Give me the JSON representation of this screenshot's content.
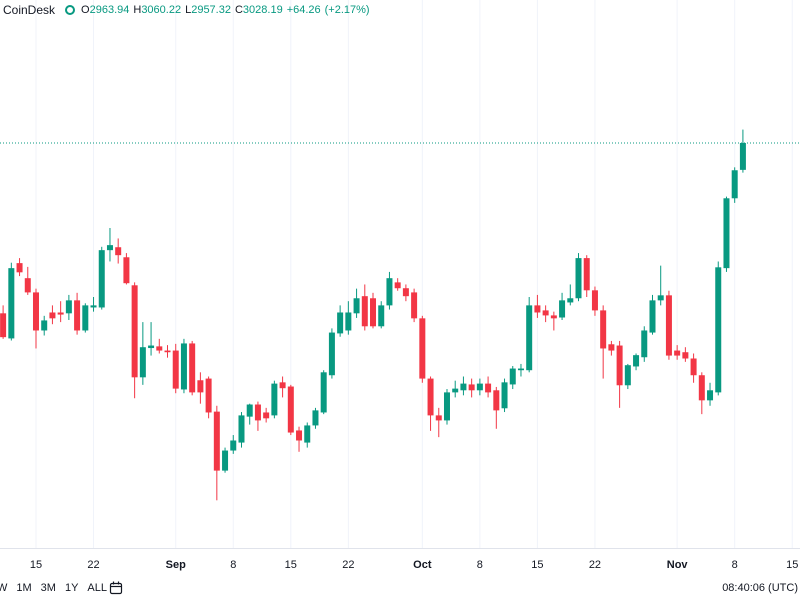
{
  "chart_data": {
    "type": "candlestick",
    "symbol": "CoinDesk",
    "ohlc_labels": [
      "O",
      "H",
      "L",
      "C"
    ],
    "change": {
      "value": 64.26,
      "label": "+64.26"
    },
    "change_pct": {
      "value": 2.17,
      "label": "(+2.17%)"
    },
    "up_color": "#089981",
    "down_color": "#f23645",
    "grid": true,
    "last_price_line": true,
    "categories": [
      null,
      null,
      null,
      null,
      "15",
      null,
      null,
      null,
      null,
      null,
      null,
      "22",
      null,
      null,
      null,
      null,
      null,
      null,
      null,
      null,
      null,
      "Sep",
      null,
      null,
      null,
      null,
      null,
      null,
      "8",
      null,
      null,
      null,
      null,
      null,
      null,
      "15",
      null,
      null,
      null,
      null,
      null,
      null,
      "22",
      null,
      null,
      null,
      null,
      null,
      null,
      null,
      null,
      "Oct",
      null,
      null,
      null,
      null,
      null,
      null,
      "8",
      null,
      null,
      null,
      null,
      null,
      null,
      "15",
      null,
      null,
      null,
      null,
      null,
      null,
      "22",
      null,
      null,
      null,
      null,
      null,
      null,
      null,
      null,
      null,
      "Nov",
      null,
      null,
      null,
      null,
      null,
      null,
      "8",
      null,
      null,
      null,
      null,
      null,
      null,
      "15"
    ],
    "open": [
      2621,
      2561,
      2741,
      2705,
      2671,
      2580,
      2623,
      2623,
      2621,
      2652,
      2580,
      2635,
      2635,
      2772,
      2779,
      2755,
      2688,
      2468,
      2538,
      2542,
      2532,
      2532,
      2439,
      2549,
      2461,
      2465,
      2386,
      2245,
      2293,
      2312,
      2374,
      2403,
      2384,
      2377,
      2456,
      2446,
      2341,
      2312,
      2353,
      2384,
      2473,
      2573,
      2580,
      2621,
      2662,
      2657,
      2590,
      2640,
      2695,
      2681,
      2671,
      2609,
      2465,
      2377,
      2365,
      2432,
      2437,
      2451,
      2437,
      2453,
      2437,
      2394,
      2451,
      2485,
      2485,
      2640,
      2628,
      2616,
      2611,
      2647,
      2657,
      2753,
      2676,
      2628,
      2547,
      2544,
      2449,
      2494,
      2516,
      2575,
      2652,
      2664,
      2532,
      2528,
      2513,
      2473,
      2413,
      2432,
      2729,
      2896,
      2963.94,
      null,
      null,
      null,
      null,
      null,
      null
    ],
    "high": [
      2640,
      2742,
      2753,
      2732,
      2680,
      2615,
      2640,
      2650,
      2665,
      2670,
      2645,
      2660,
      2780,
      2825,
      2800,
      2765,
      2695,
      2600,
      2600,
      2560,
      2545,
      2548,
      2560,
      2555,
      2480,
      2470,
      2400,
      2300,
      2330,
      2385,
      2405,
      2410,
      2395,
      2460,
      2470,
      2450,
      2350,
      2360,
      2395,
      2485,
      2585,
      2640,
      2650,
      2680,
      2690,
      2670,
      2650,
      2720,
      2705,
      2690,
      2680,
      2615,
      2470,
      2395,
      2440,
      2460,
      2470,
      2465,
      2465,
      2470,
      2445,
      2465,
      2495,
      2500,
      2660,
      2665,
      2640,
      2625,
      2670,
      2690,
      2765,
      2760,
      2685,
      2640,
      2555,
      2555,
      2500,
      2525,
      2590,
      2665,
      2735,
      2675,
      2545,
      2540,
      2525,
      2480,
      2455,
      2745,
      2900,
      2970,
      3060.22,
      null,
      null,
      null,
      null,
      null,
      null
    ],
    "low": [
      2560,
      2556,
      2710,
      2665,
      2537,
      2568,
      2595,
      2600,
      2605,
      2570,
      2575,
      2625,
      2630,
      2745,
      2740,
      2690,
      2418,
      2450,
      2520,
      2525,
      2515,
      2430,
      2430,
      2425,
      2405,
      2370,
      2174,
      2240,
      2285,
      2300,
      2355,
      2340,
      2360,
      2370,
      2420,
      2330,
      2290,
      2300,
      2345,
      2380,
      2465,
      2565,
      2570,
      2610,
      2580,
      2585,
      2585,
      2630,
      2675,
      2650,
      2600,
      2455,
      2340,
      2325,
      2355,
      2420,
      2425,
      2420,
      2425,
      2420,
      2345,
      2385,
      2440,
      2470,
      2480,
      2610,
      2600,
      2580,
      2605,
      2640,
      2650,
      2660,
      2615,
      2465,
      2520,
      2395,
      2440,
      2485,
      2505,
      2570,
      2640,
      2510,
      2510,
      2505,
      2455,
      2380,
      2400,
      2425,
      2720,
      2885,
      2957.32,
      null,
      null,
      null,
      null,
      null,
      null
    ],
    "close": [
      2564,
      2729,
      2719,
      2671,
      2580,
      2604,
      2609,
      2618,
      2652,
      2580,
      2640,
      2640,
      2772,
      2784,
      2760,
      2693,
      2468,
      2540,
      2544,
      2532,
      2528,
      2441,
      2549,
      2432,
      2432,
      2384,
      2245,
      2293,
      2317,
      2377,
      2403,
      2365,
      2370,
      2453,
      2442,
      2336,
      2317,
      2353,
      2389,
      2480,
      2575,
      2623,
      2623,
      2657,
      2590,
      2590,
      2640,
      2705,
      2681,
      2662,
      2609,
      2465,
      2377,
      2365,
      2432,
      2441,
      2453,
      2437,
      2453,
      2432,
      2389,
      2456,
      2489,
      2489,
      2640,
      2623,
      2616,
      2609,
      2652,
      2657,
      2753,
      2676,
      2628,
      2537,
      2532,
      2449,
      2497,
      2521,
      2580,
      2652,
      2664,
      2520,
      2520,
      2513,
      2473,
      2413,
      2437,
      2731,
      2896,
      2963,
      3028.19,
      null,
      null,
      null,
      null,
      null,
      null
    ],
    "ylim": [
      2060,
      3370
    ]
  },
  "bottom_bar": {
    "ranges": [
      "W",
      "1M",
      "3M",
      "1Y",
      "ALL"
    ],
    "time": "08:40:06 (UTC)"
  }
}
